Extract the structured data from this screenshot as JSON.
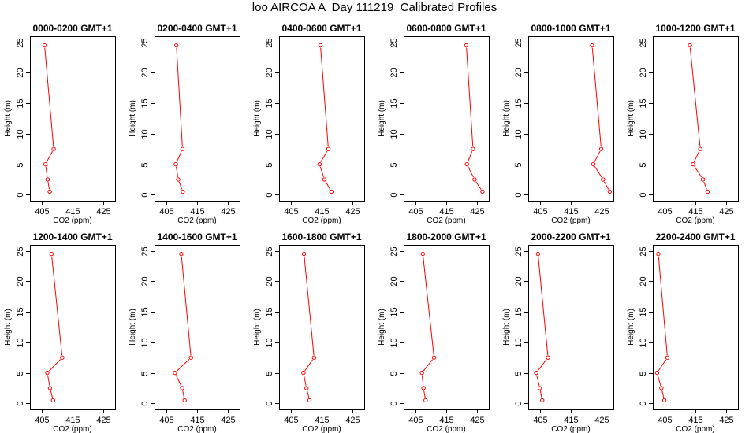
{
  "page_title": "loo AIRCOA A  Day 111219  Calibrated Profiles",
  "colors": {
    "series": "#ff0000",
    "axis": "#000000",
    "background": "#ffffff"
  },
  "chart_data": [
    {
      "type": "line",
      "title": "0000-0200 GMT+1",
      "xlabel": "CO2 (ppm)",
      "ylabel": "Height (m)",
      "xlim": [
        401,
        429
      ],
      "ylim": [
        -1,
        26
      ],
      "xticks": [
        405,
        415,
        425
      ],
      "yticks": [
        0,
        5,
        10,
        15,
        20,
        25
      ],
      "points": [
        [
          407.5,
          0.5
        ],
        [
          406.8,
          2.5
        ],
        [
          406.1,
          5
        ],
        [
          408.8,
          7.5
        ],
        [
          405.8,
          24.5
        ]
      ]
    },
    {
      "type": "line",
      "title": "0200-0400 GMT+1",
      "xlabel": "CO2 (ppm)",
      "ylabel": "Height (m)",
      "xlim": [
        401,
        429
      ],
      "ylim": [
        -1,
        26
      ],
      "xticks": [
        405,
        415,
        425
      ],
      "yticks": [
        0,
        5,
        10,
        15,
        20,
        25
      ],
      "points": [
        [
          410.3,
          0.5
        ],
        [
          408.8,
          2.5
        ],
        [
          408.0,
          5
        ],
        [
          410.2,
          7.5
        ],
        [
          408.2,
          24.5
        ]
      ]
    },
    {
      "type": "line",
      "title": "0400-0600 GMT+1",
      "xlabel": "CO2 (ppm)",
      "ylabel": "Height (m)",
      "xlim": [
        401,
        429
      ],
      "ylim": [
        -1,
        26
      ],
      "xticks": [
        405,
        415,
        425
      ],
      "yticks": [
        0,
        5,
        10,
        15,
        20,
        25
      ],
      "points": [
        [
          418.2,
          0.5
        ],
        [
          415.9,
          2.5
        ],
        [
          414.3,
          5
        ],
        [
          417.2,
          7.5
        ],
        [
          414.6,
          24.5
        ]
      ]
    },
    {
      "type": "line",
      "title": "0600-0800 GMT+1",
      "xlabel": "CO2 (ppm)",
      "ylabel": "Height (m)",
      "xlim": [
        401,
        429
      ],
      "ylim": [
        -1,
        26
      ],
      "xticks": [
        405,
        415,
        425
      ],
      "yticks": [
        0,
        5,
        10,
        15,
        20,
        25
      ],
      "points": [
        [
          426.9,
          0.5
        ],
        [
          424.3,
          2.5
        ],
        [
          421.8,
          5
        ],
        [
          423.8,
          7.5
        ],
        [
          421.6,
          24.5
        ]
      ]
    },
    {
      "type": "line",
      "title": "0800-1000 GMT+1",
      "xlabel": "CO2 (ppm)",
      "ylabel": "Height (m)",
      "xlim": [
        401,
        429
      ],
      "ylim": [
        -1,
        26
      ],
      "xticks": [
        405,
        415,
        425
      ],
      "yticks": [
        0,
        5,
        10,
        15,
        20,
        25
      ],
      "points": [
        [
          427.8,
          0.5
        ],
        [
          425.6,
          2.5
        ],
        [
          422.4,
          5
        ],
        [
          425.0,
          7.5
        ],
        [
          422.0,
          24.5
        ]
      ]
    },
    {
      "type": "line",
      "title": "1000-1200 GMT+1",
      "xlabel": "CO2 (ppm)",
      "ylabel": "Height (m)",
      "xlim": [
        401,
        429
      ],
      "ylim": [
        -1,
        26
      ],
      "xticks": [
        405,
        415,
        425
      ],
      "yticks": [
        0,
        5,
        10,
        15,
        20,
        25
      ],
      "points": [
        [
          419.0,
          0.5
        ],
        [
          417.5,
          2.5
        ],
        [
          414.2,
          5
        ],
        [
          416.6,
          7.5
        ],
        [
          413.2,
          24.5
        ]
      ]
    },
    {
      "type": "line",
      "title": "1200-1400 GMT+1",
      "xlabel": "CO2 (ppm)",
      "ylabel": "Height (m)",
      "xlim": [
        401,
        429
      ],
      "ylim": [
        -1,
        26
      ],
      "xticks": [
        405,
        415,
        425
      ],
      "yticks": [
        0,
        5,
        10,
        15,
        20,
        25
      ],
      "points": [
        [
          408.6,
          0.5
        ],
        [
          407.6,
          2.5
        ],
        [
          406.7,
          5
        ],
        [
          411.6,
          7.5
        ],
        [
          408.1,
          24.5
        ]
      ]
    },
    {
      "type": "line",
      "title": "1400-1600 GMT+1",
      "xlabel": "CO2 (ppm)",
      "ylabel": "Height (m)",
      "xlim": [
        401,
        429
      ],
      "ylim": [
        -1,
        26
      ],
      "xticks": [
        405,
        415,
        425
      ],
      "yticks": [
        0,
        5,
        10,
        15,
        20,
        25
      ],
      "points": [
        [
          410.9,
          0.5
        ],
        [
          410.1,
          2.5
        ],
        [
          407.7,
          5
        ],
        [
          413.0,
          7.5
        ],
        [
          409.8,
          24.5
        ]
      ]
    },
    {
      "type": "line",
      "title": "1600-1800 GMT+1",
      "xlabel": "CO2 (ppm)",
      "ylabel": "Height (m)",
      "xlim": [
        401,
        429
      ],
      "ylim": [
        -1,
        26
      ],
      "xticks": [
        405,
        415,
        425
      ],
      "yticks": [
        0,
        5,
        10,
        15,
        20,
        25
      ],
      "points": [
        [
          411.0,
          0.5
        ],
        [
          410.0,
          2.5
        ],
        [
          409.0,
          5
        ],
        [
          412.5,
          7.5
        ],
        [
          409.2,
          24.5
        ]
      ]
    },
    {
      "type": "line",
      "title": "1800-2000 GMT+1",
      "xlabel": "CO2 (ppm)",
      "ylabel": "Height (m)",
      "xlim": [
        401,
        429
      ],
      "ylim": [
        -1,
        26
      ],
      "xticks": [
        405,
        415,
        425
      ],
      "yticks": [
        0,
        5,
        10,
        15,
        20,
        25
      ],
      "points": [
        [
          408.2,
          0.5
        ],
        [
          407.5,
          2.5
        ],
        [
          407.0,
          5
        ],
        [
          411.0,
          7.5
        ],
        [
          407.3,
          24.5
        ]
      ]
    },
    {
      "type": "line",
      "title": "2000-2200 GMT+1",
      "xlabel": "CO2 (ppm)",
      "ylabel": "Height (m)",
      "xlim": [
        401,
        429
      ],
      "ylim": [
        -1,
        26
      ],
      "xticks": [
        405,
        415,
        425
      ],
      "yticks": [
        0,
        5,
        10,
        15,
        20,
        25
      ],
      "points": [
        [
          405.6,
          0.5
        ],
        [
          404.8,
          2.5
        ],
        [
          403.6,
          5
        ],
        [
          407.5,
          7.5
        ],
        [
          404.2,
          24.5
        ]
      ]
    },
    {
      "type": "line",
      "title": "2200-2400 GMT+1",
      "xlabel": "CO2 (ppm)",
      "ylabel": "Height (m)",
      "xlim": [
        401,
        429
      ],
      "ylim": [
        -1,
        26
      ],
      "xticks": [
        405,
        415,
        425
      ],
      "yticks": [
        0,
        5,
        10,
        15,
        20,
        25
      ],
      "points": [
        [
          404.8,
          0.5
        ],
        [
          403.8,
          2.5
        ],
        [
          402.4,
          5
        ],
        [
          405.8,
          7.5
        ],
        [
          402.8,
          24.5
        ]
      ]
    }
  ]
}
